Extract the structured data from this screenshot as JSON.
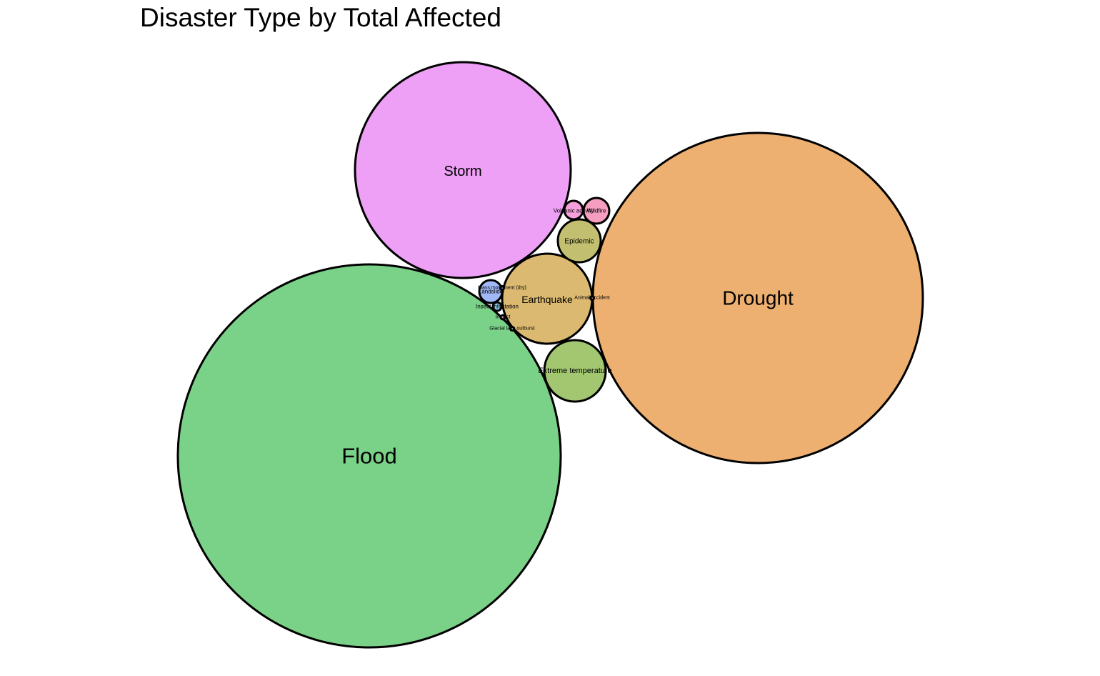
{
  "chart_data": {
    "type": "bubble",
    "title": "Disaster Type by Total Affected",
    "xlabel": "",
    "ylabel": "",
    "grid": false,
    "legend": "none",
    "bubbles": [
      {
        "label": "Flood",
        "color": "#7AD188"
      },
      {
        "label": "Drought",
        "color": "#EDB071"
      },
      {
        "label": "Storm",
        "color": "#EDA0F5"
      },
      {
        "label": "Earthquake",
        "color": "#DBB970"
      },
      {
        "label": "Extreme temperature",
        "color": "#A2C770"
      },
      {
        "label": "Epidemic",
        "color": "#C2C070"
      },
      {
        "label": "Wildfire",
        "color": "#F59EC0"
      },
      {
        "label": "Volcanic activity",
        "color": "#F5A0DA"
      },
      {
        "label": "Landslide",
        "color": "#A0B8F5"
      },
      {
        "label": "Insect infestation",
        "color": "#8ECFF0"
      },
      {
        "label": "Mass movement (dry)",
        "color": "#A8A8F0"
      },
      {
        "label": "Animal accident",
        "color": "#E8A4A0"
      },
      {
        "label": "Impact",
        "color": "#F0A8C8"
      },
      {
        "label": "Glacial lake outburst",
        "color": "#A0D8C0"
      }
    ]
  }
}
